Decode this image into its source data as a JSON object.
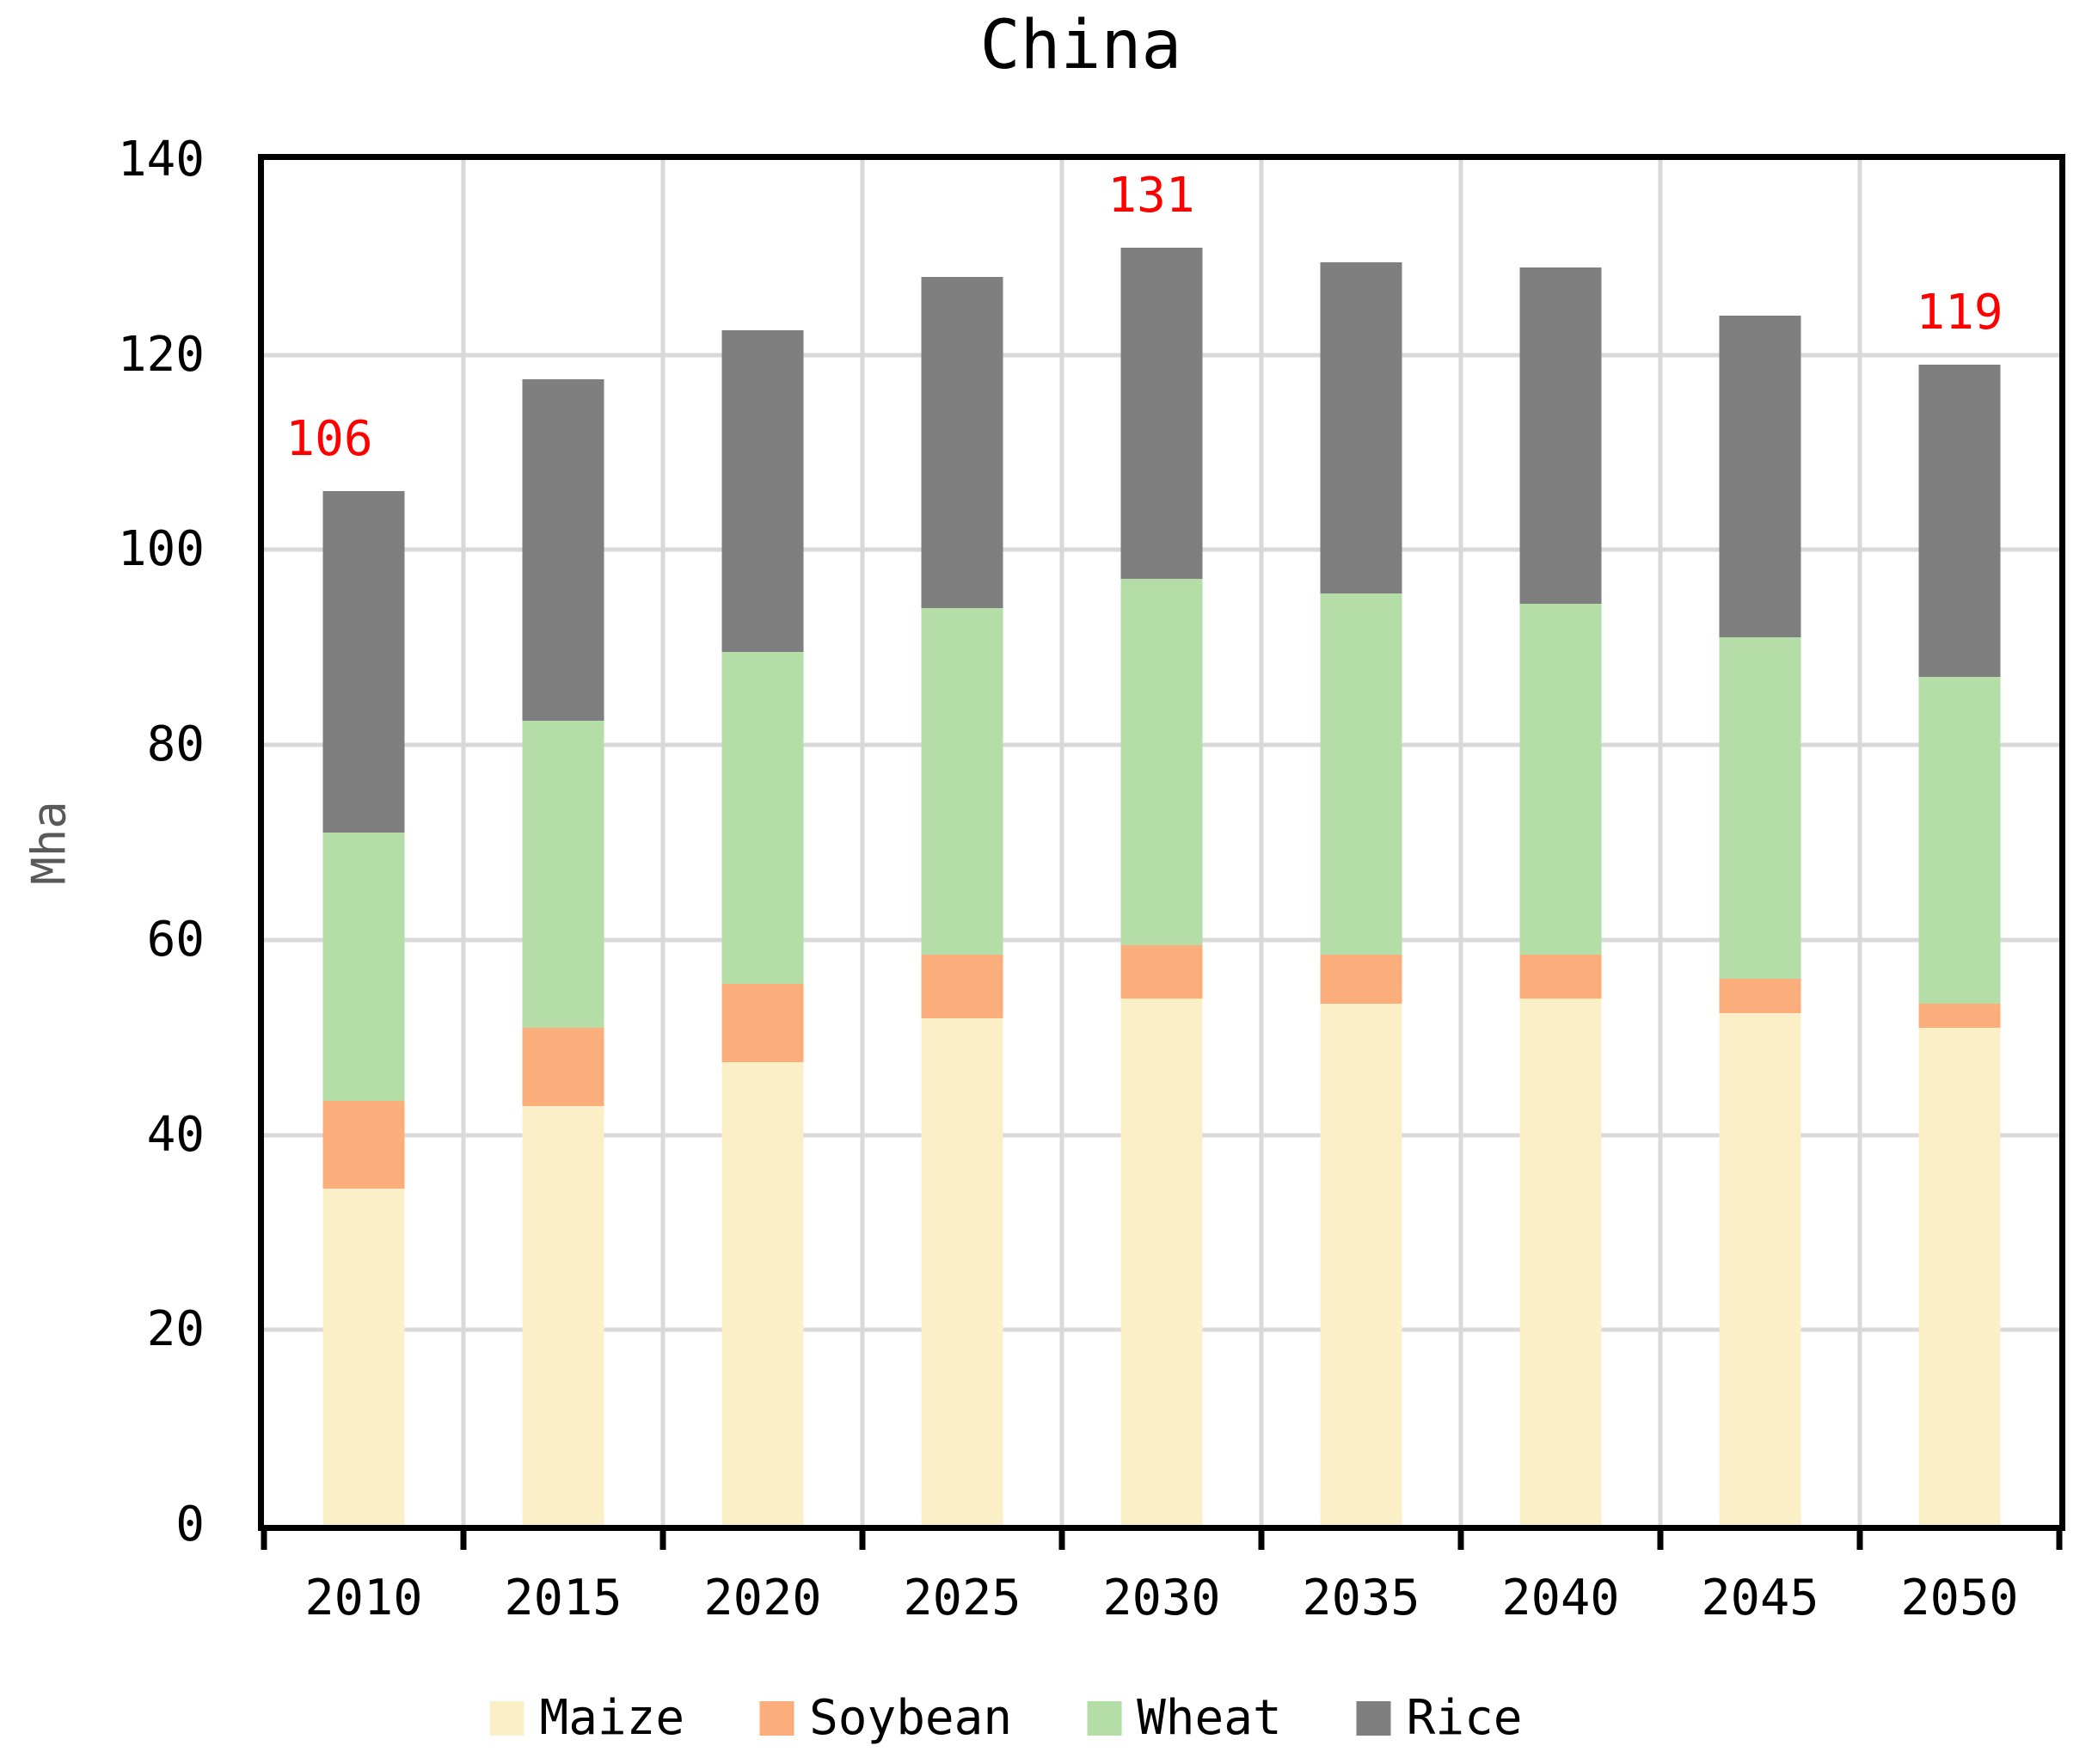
{
  "title": "China",
  "y_axis": {
    "label": "Mha",
    "max": 140,
    "tick_step": 20,
    "tick_labels": [
      "0",
      "20",
      "40",
      "60",
      "80",
      "100",
      "120",
      "140"
    ]
  },
  "x_axis": {
    "categories": [
      "2010",
      "2015",
      "2020",
      "2025",
      "2030",
      "2035",
      "2040",
      "2045",
      "2050"
    ]
  },
  "colors": {
    "annotation": "#FF0000",
    "gridline": "#D9D9D9",
    "axis": "#000000",
    "maize": "#FBEFC8",
    "soybean": "#FBAD7B",
    "wheat": "#B5DDA8",
    "rice": "#7F7F7F"
  },
  "chart_data": {
    "type": "bar",
    "stacked": true,
    "title": "China",
    "ylabel": "Mha",
    "ylim": [
      0,
      140
    ],
    "ytick_step": 20,
    "grid": true,
    "legend_position": "bottom",
    "categories": [
      "2010",
      "2015",
      "2020",
      "2025",
      "2030",
      "2035",
      "2040",
      "2045",
      "2050"
    ],
    "series": [
      {
        "name": "Maize",
        "color": "#FBEFC8",
        "values": [
          34.5,
          43.0,
          47.5,
          52.0,
          54.0,
          53.5,
          54.0,
          52.5,
          51.0
        ]
      },
      {
        "name": "Soybean",
        "color": "#FBAD7B",
        "values": [
          9.0,
          8.0,
          8.0,
          6.5,
          5.5,
          5.0,
          4.5,
          3.5,
          2.5
        ]
      },
      {
        "name": "Wheat",
        "color": "#B5DDA8",
        "values": [
          27.5,
          31.5,
          34.0,
          35.5,
          37.5,
          37.0,
          36.0,
          35.0,
          33.5
        ]
      },
      {
        "name": "Rice",
        "color": "#7F7F7F",
        "values": [
          35.0,
          35.0,
          33.0,
          34.0,
          34.0,
          34.0,
          34.5,
          33.0,
          32.0
        ]
      }
    ],
    "stack_totals": [
      106,
      117.5,
      122.5,
      128,
      131,
      129.5,
      129,
      124,
      119
    ],
    "annotations": [
      {
        "category": "2010",
        "text": "106",
        "dx": -40
      },
      {
        "category": "2030",
        "text": "131",
        "dx": -12
      },
      {
        "category": "2050",
        "text": "119",
        "dx": 0
      }
    ]
  }
}
